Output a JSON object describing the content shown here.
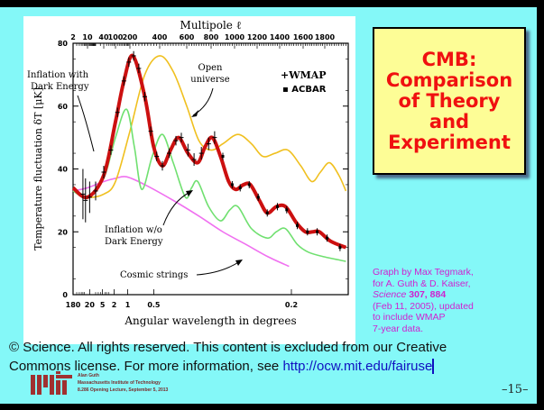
{
  "title_box": {
    "lines": [
      "CMB:",
      "Comparison",
      "of Theory",
      "and",
      "Experiment"
    ]
  },
  "credit": {
    "line1": "Graph by Max Tegmark,",
    "line2": "for A. Guth & D. Kaiser,",
    "journal": "Science",
    "volume": "307, 884",
    "line4": "(Feb 11, 2005), updated",
    "line5": "to include WMAP",
    "line6": "7-year data."
  },
  "copyright": {
    "line1": "© Science. All rights reserved. This content is excluded from our Creative",
    "line2_prefix": "Commons license. For more information, see ",
    "link": "http://ocw.mit.edu/fairuse"
  },
  "footer": {
    "author": "Alan Guth",
    "institution": "Massachusetts Institute of Technology",
    "lecture": "8.286 Opening Lecture, September 5, 2013",
    "page": "–15–"
  },
  "colors": {
    "background": "#84f8f8",
    "title_text": "#f01010",
    "title_box": "#fdfd96",
    "credit": "#d020d0",
    "link": "#1010c0"
  },
  "chart_data": {
    "type": "line",
    "title": "Multipole ℓ",
    "xlabel": "Angular wavelength in degrees",
    "ylabel": "Temperature fluctuation δT [μK]",
    "ylim": [
      0,
      80
    ],
    "y_ticks": [
      "0",
      "20",
      "40",
      "60",
      "80"
    ],
    "top_ticks": [
      {
        "label": "2",
        "l": 2
      },
      {
        "label": "10",
        "l": 10
      },
      {
        "label": "40",
        "l": 40
      },
      {
        "label": "100",
        "l": 100
      },
      {
        "label": "200",
        "l": 200
      },
      {
        "label": "400",
        "l": 400
      },
      {
        "label": "600",
        "l": 600
      },
      {
        "label": "800",
        "l": 800
      },
      {
        "label": "1000",
        "l": 1000
      },
      {
        "label": "1200",
        "l": 1200
      },
      {
        "label": "1400",
        "l": 1400
      },
      {
        "label": "1600",
        "l": 1600
      },
      {
        "label": "1800",
        "l": 1800
      }
    ],
    "bottom_ticks": [
      {
        "label": "180",
        "l": 2
      },
      {
        "label": "20",
        "l": 12
      },
      {
        "label": "5",
        "l": 36
      },
      {
        "label": "2",
        "l": 90
      },
      {
        "label": "1",
        "l": 180
      },
      {
        "label": "0.5",
        "l": 360
      },
      {
        "label": "0.2",
        "l": 1500
      }
    ],
    "legend": {
      "wmap": "+WMAP",
      "acbar": "▪ ACBAR",
      "placement": "top-right"
    },
    "annotations": {
      "inflation_de": [
        "Inflation with",
        "Dark Energy"
      ],
      "open": [
        "Open",
        "universe"
      ],
      "inflation_no_de": [
        "Inflation w/o",
        "Dark Energy"
      ],
      "strings": "Cosmic strings"
    },
    "series": [
      {
        "name": "Inflation with Dark Energy",
        "color": "#cc1010",
        "points": [
          [
            2,
            34
          ],
          [
            10,
            31
          ],
          [
            40,
            38
          ],
          [
            100,
            55
          ],
          [
            150,
            68
          ],
          [
            220,
            76
          ],
          [
            300,
            63
          ],
          [
            360,
            47
          ],
          [
            420,
            41
          ],
          [
            480,
            46
          ],
          [
            540,
            50
          ],
          [
            610,
            45
          ],
          [
            690,
            42
          ],
          [
            750,
            47
          ],
          [
            810,
            50
          ],
          [
            880,
            44
          ],
          [
            950,
            36
          ],
          [
            1010,
            33.5
          ],
          [
            1080,
            35
          ],
          [
            1140,
            35
          ],
          [
            1220,
            30
          ],
          [
            1290,
            26
          ],
          [
            1370,
            28
          ],
          [
            1450,
            28
          ],
          [
            1540,
            23
          ],
          [
            1620,
            20
          ],
          [
            1690,
            20
          ],
          [
            1750,
            20
          ],
          [
            1850,
            17
          ],
          [
            1980,
            15
          ]
        ]
      },
      {
        "name": "Open universe",
        "color": "#f0c020",
        "points": [
          [
            2,
            33
          ],
          [
            10,
            31
          ],
          [
            40,
            32
          ],
          [
            100,
            36
          ],
          [
            200,
            52
          ],
          [
            300,
            70
          ],
          [
            400,
            76
          ],
          [
            500,
            71
          ],
          [
            600,
            60
          ],
          [
            700,
            49
          ],
          [
            800,
            46
          ],
          [
            900,
            48
          ],
          [
            1030,
            51
          ],
          [
            1150,
            48
          ],
          [
            1250,
            44
          ],
          [
            1360,
            45
          ],
          [
            1470,
            46
          ],
          [
            1580,
            41
          ],
          [
            1680,
            36
          ],
          [
            1760,
            39
          ],
          [
            1840,
            42
          ],
          [
            1920,
            38
          ],
          [
            1980,
            33
          ]
        ]
      },
      {
        "name": "Inflation w/o Dark Energy",
        "color": "#70e070",
        "points": [
          [
            2,
            33
          ],
          [
            10,
            31
          ],
          [
            40,
            37
          ],
          [
            100,
            50
          ],
          [
            170,
            59
          ],
          [
            230,
            47
          ],
          [
            280,
            33.5
          ],
          [
            350,
            44
          ],
          [
            420,
            51
          ],
          [
            500,
            42
          ],
          [
            590,
            31
          ],
          [
            640,
            34
          ],
          [
            690,
            36
          ],
          [
            780,
            28
          ],
          [
            880,
            23.5
          ],
          [
            960,
            27
          ],
          [
            1030,
            28
          ],
          [
            1150,
            21
          ],
          [
            1290,
            18
          ],
          [
            1370,
            20
          ],
          [
            1450,
            21
          ],
          [
            1550,
            16
          ],
          [
            1650,
            13.5
          ],
          [
            1800,
            12
          ],
          [
            1980,
            10.6
          ]
        ]
      },
      {
        "name": "Cosmic strings",
        "color": "#f070f0",
        "points": [
          [
            2,
            33
          ],
          [
            10,
            34
          ],
          [
            40,
            36
          ],
          [
            100,
            37
          ],
          [
            170,
            37.5
          ],
          [
            300,
            35
          ],
          [
            500,
            30
          ],
          [
            700,
            25
          ],
          [
            900,
            20
          ],
          [
            1100,
            16
          ],
          [
            1300,
            12
          ],
          [
            1480,
            9
          ]
        ]
      }
    ],
    "wmap_points": [
      [
        6,
        32,
        8
      ],
      [
        8,
        30,
        7
      ],
      [
        12,
        31,
        5
      ],
      [
        20,
        33,
        3
      ],
      [
        40,
        39,
        2
      ],
      [
        70,
        46,
        1.5
      ],
      [
        110,
        58,
        1.5
      ],
      [
        150,
        68,
        1.5
      ],
      [
        190,
        74,
        1.5
      ],
      [
        225,
        76,
        1.5
      ],
      [
        260,
        72,
        1.5
      ],
      [
        300,
        63,
        1.5
      ],
      [
        340,
        52,
        1.5
      ],
      [
        380,
        44,
        1.5
      ],
      [
        420,
        41,
        1.5
      ],
      [
        470,
        45,
        1.5
      ],
      [
        520,
        49,
        1.5
      ],
      [
        560,
        50,
        1.5
      ],
      [
        610,
        46,
        2
      ],
      [
        660,
        43,
        2
      ],
      [
        720,
        45,
        2
      ],
      [
        780,
        48,
        2
      ],
      [
        830,
        50,
        2
      ]
    ],
    "acbar_points": [
      [
        900,
        44
      ],
      [
        980,
        35
      ],
      [
        1050,
        34
      ],
      [
        1130,
        35
      ],
      [
        1210,
        31
      ],
      [
        1290,
        26
      ],
      [
        1380,
        28
      ],
      [
        1460,
        27
      ],
      [
        1550,
        22
      ],
      [
        1640,
        20
      ],
      [
        1730,
        20
      ],
      [
        1820,
        18
      ],
      [
        1930,
        15
      ]
    ]
  }
}
